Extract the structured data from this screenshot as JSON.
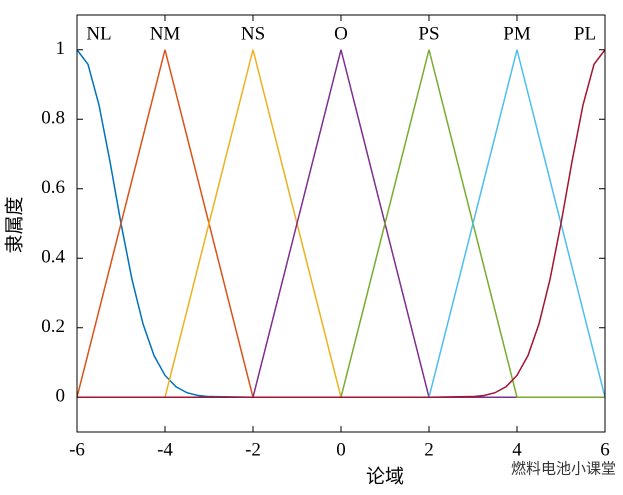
{
  "chart_data": {
    "type": "line",
    "xlabel": "论域",
    "ylabel": "隶属度",
    "xlim": [
      -6,
      6
    ],
    "ylim": [
      -0.1,
      1.1
    ],
    "xticks": [
      -6,
      -4,
      -2,
      0,
      2,
      4,
      6
    ],
    "yticks": [
      0,
      0.2,
      0.4,
      0.6,
      0.8,
      1
    ],
    "watermark": "燃料电池小课堂",
    "series": [
      {
        "name": "NL",
        "color": "#0072bd",
        "x": [
          -6,
          -5.75,
          -5.5,
          -5.25,
          -5,
          -4.75,
          -4.5,
          -4.25,
          -4,
          -3.75,
          -3.5,
          -3.25,
          -3,
          -2,
          6
        ],
        "values": [
          1,
          0.958,
          0.841,
          0.678,
          0.5,
          0.339,
          0.211,
          0.12,
          0.063,
          0.03,
          0.013,
          0.005,
          0.002,
          0,
          0
        ]
      },
      {
        "name": "NM",
        "color": "#d95319",
        "x": [
          -6,
          -4,
          -2,
          6
        ],
        "values": [
          0,
          1,
          0,
          0
        ]
      },
      {
        "name": "NS",
        "color": "#edb120",
        "x": [
          -6,
          -4,
          -2,
          0,
          6
        ],
        "values": [
          0,
          0,
          1,
          0,
          0
        ]
      },
      {
        "name": "O",
        "color": "#7e2f8e",
        "x": [
          -6,
          -2,
          0,
          2,
          6
        ],
        "values": [
          0,
          0,
          1,
          0,
          0
        ]
      },
      {
        "name": "PS",
        "color": "#77ac30",
        "x": [
          -6,
          0,
          2,
          4,
          6
        ],
        "values": [
          0,
          0,
          1,
          0,
          0
        ]
      },
      {
        "name": "PM",
        "color": "#4dbeee",
        "x": [
          -6,
          2,
          4,
          6
        ],
        "values": [
          0,
          0,
          1,
          0
        ]
      },
      {
        "name": "PL",
        "color": "#a2142f",
        "x": [
          -6,
          2,
          3,
          3.25,
          3.5,
          3.75,
          4,
          4.25,
          4.5,
          4.75,
          5,
          5.25,
          5.5,
          5.75,
          6
        ],
        "values": [
          0,
          0,
          0.002,
          0.005,
          0.013,
          0.03,
          0.063,
          0.12,
          0.211,
          0.339,
          0.5,
          0.678,
          0.841,
          0.958,
          1
        ]
      }
    ]
  }
}
